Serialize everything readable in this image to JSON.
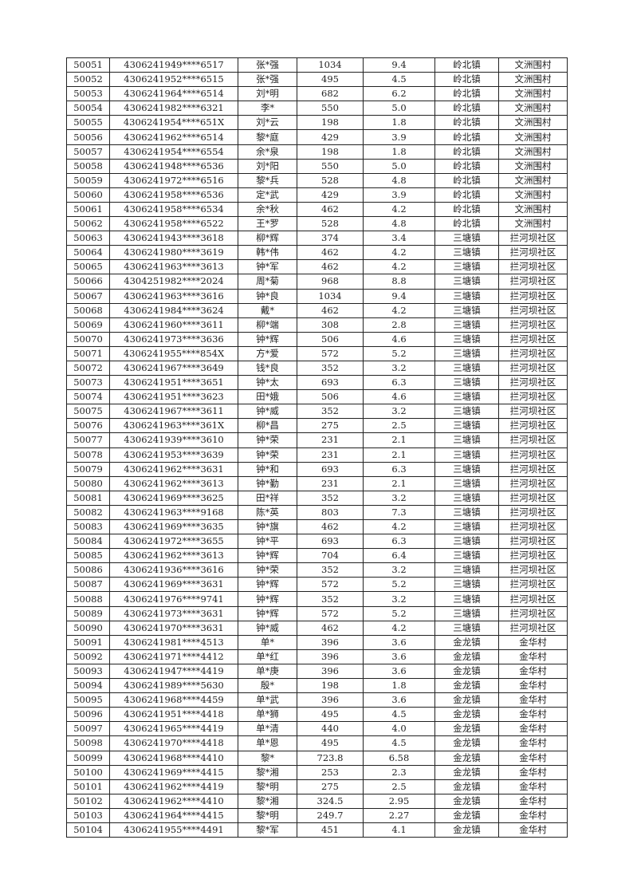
{
  "rows": [
    [
      "50051",
      "4306241949****6517",
      "张*强",
      "1034",
      "9.4",
      "岭北镇",
      "文洲围村"
    ],
    [
      "50052",
      "4306241952****6515",
      "张*强",
      "495",
      "4.5",
      "岭北镇",
      "文洲围村"
    ],
    [
      "50053",
      "4306241964****6514",
      "刘*明",
      "682",
      "6.2",
      "岭北镇",
      "文洲围村"
    ],
    [
      "50054",
      "4306241982****6321",
      "李*",
      "550",
      "5.0",
      "岭北镇",
      "文洲围村"
    ],
    [
      "50055",
      "4306241954****651X",
      "刘*云",
      "198",
      "1.8",
      "岭北镇",
      "文洲围村"
    ],
    [
      "50056",
      "4306241962****6514",
      "黎*庭",
      "429",
      "3.9",
      "岭北镇",
      "文洲围村"
    ],
    [
      "50057",
      "4306241954****6554",
      "余*泉",
      "198",
      "1.8",
      "岭北镇",
      "文洲围村"
    ],
    [
      "50058",
      "4306241948****6536",
      "刘*阳",
      "550",
      "5.0",
      "岭北镇",
      "文洲围村"
    ],
    [
      "50059",
      "4306241972****6516",
      "黎*兵",
      "528",
      "4.8",
      "岭北镇",
      "文洲围村"
    ],
    [
      "50060",
      "4306241958****6536",
      "定*武",
      "429",
      "3.9",
      "岭北镇",
      "文洲围村"
    ],
    [
      "50061",
      "4306241958****6534",
      "余*秋",
      "462",
      "4.2",
      "岭北镇",
      "文洲围村"
    ],
    [
      "50062",
      "4306241958****6522",
      "王*罗",
      "528",
      "4.8",
      "岭北镇",
      "文洲围村"
    ],
    [
      "50063",
      "4306241943****3618",
      "柳*辉",
      "374",
      "3.4",
      "三塘镇",
      "拦河坝社区"
    ],
    [
      "50064",
      "4306241980****3619",
      "韩*伟",
      "462",
      "4.2",
      "三塘镇",
      "拦河坝社区"
    ],
    [
      "50065",
      "4306241963****3613",
      "钟*军",
      "462",
      "4.2",
      "三塘镇",
      "拦河坝社区"
    ],
    [
      "50066",
      "4304251982****2024",
      "周*菊",
      "968",
      "8.8",
      "三塘镇",
      "拦河坝社区"
    ],
    [
      "50067",
      "4306241963****3616",
      "钟*良",
      "1034",
      "9.4",
      "三塘镇",
      "拦河坝社区"
    ],
    [
      "50068",
      "4306241984****3624",
      "戴*",
      "462",
      "4.2",
      "三塘镇",
      "拦河坝社区"
    ],
    [
      "50069",
      "4306241960****3611",
      "柳*端",
      "308",
      "2.8",
      "三塘镇",
      "拦河坝社区"
    ],
    [
      "50070",
      "4306241973****3636",
      "钟*辉",
      "506",
      "4.6",
      "三塘镇",
      "拦河坝社区"
    ],
    [
      "50071",
      "4306241955****854X",
      "方*爱",
      "572",
      "5.2",
      "三塘镇",
      "拦河坝社区"
    ],
    [
      "50072",
      "4306241967****3649",
      "钱*良",
      "352",
      "3.2",
      "三塘镇",
      "拦河坝社区"
    ],
    [
      "50073",
      "4306241951****3651",
      "钟*太",
      "693",
      "6.3",
      "三塘镇",
      "拦河坝社区"
    ],
    [
      "50074",
      "4306241951****3623",
      "田*娥",
      "506",
      "4.6",
      "三塘镇",
      "拦河坝社区"
    ],
    [
      "50075",
      "4306241967****3611",
      "钟*威",
      "352",
      "3.2",
      "三塘镇",
      "拦河坝社区"
    ],
    [
      "50076",
      "4306241963****361X",
      "柳*昌",
      "275",
      "2.5",
      "三塘镇",
      "拦河坝社区"
    ],
    [
      "50077",
      "4306241939****3610",
      "钟*荣",
      "231",
      "2.1",
      "三塘镇",
      "拦河坝社区"
    ],
    [
      "50078",
      "4306241953****3639",
      "钟*荣",
      "231",
      "2.1",
      "三塘镇",
      "拦河坝社区"
    ],
    [
      "50079",
      "4306241962****3631",
      "钟*和",
      "693",
      "6.3",
      "三塘镇",
      "拦河坝社区"
    ],
    [
      "50080",
      "4306241962****3613",
      "钟*勤",
      "231",
      "2.1",
      "三塘镇",
      "拦河坝社区"
    ],
    [
      "50081",
      "4306241969****3625",
      "田*祥",
      "352",
      "3.2",
      "三塘镇",
      "拦河坝社区"
    ],
    [
      "50082",
      "4306241963****9168",
      "陈*英",
      "803",
      "7.3",
      "三塘镇",
      "拦河坝社区"
    ],
    [
      "50083",
      "4306241969****3635",
      "钟*旗",
      "462",
      "4.2",
      "三塘镇",
      "拦河坝社区"
    ],
    [
      "50084",
      "4306241972****3655",
      "钟*平",
      "693",
      "6.3",
      "三塘镇",
      "拦河坝社区"
    ],
    [
      "50085",
      "4306241962****3613",
      "钟*辉",
      "704",
      "6.4",
      "三塘镇",
      "拦河坝社区"
    ],
    [
      "50086",
      "4306241936****3616",
      "钟*荣",
      "352",
      "3.2",
      "三塘镇",
      "拦河坝社区"
    ],
    [
      "50087",
      "4306241969****3631",
      "钟*辉",
      "572",
      "5.2",
      "三塘镇",
      "拦河坝社区"
    ],
    [
      "50088",
      "4306241976****9741",
      "钟*辉",
      "352",
      "3.2",
      "三塘镇",
      "拦河坝社区"
    ],
    [
      "50089",
      "4306241973****3631",
      "钟*辉",
      "572",
      "5.2",
      "三塘镇",
      "拦河坝社区"
    ],
    [
      "50090",
      "4306241970****3631",
      "钟*威",
      "462",
      "4.2",
      "三塘镇",
      "拦河坝社区"
    ],
    [
      "50091",
      "4306241981****4513",
      "单*",
      "396",
      "3.6",
      "金龙镇",
      "金华村"
    ],
    [
      "50092",
      "4306241971****4412",
      "单*红",
      "396",
      "3.6",
      "金龙镇",
      "金华村"
    ],
    [
      "50093",
      "4306241947****4419",
      "单*庚",
      "396",
      "3.6",
      "金龙镇",
      "金华村"
    ],
    [
      "50094",
      "4306241989****5630",
      "殷*",
      "198",
      "1.8",
      "金龙镇",
      "金华村"
    ],
    [
      "50095",
      "4306241968****4459",
      "单*武",
      "396",
      "3.6",
      "金龙镇",
      "金华村"
    ],
    [
      "50096",
      "4306241951****4418",
      "单*狮",
      "495",
      "4.5",
      "金龙镇",
      "金华村"
    ],
    [
      "50097",
      "4306241965****4419",
      "单*清",
      "440",
      "4.0",
      "金龙镇",
      "金华村"
    ],
    [
      "50098",
      "4306241970****4418",
      "单*恩",
      "495",
      "4.5",
      "金龙镇",
      "金华村"
    ],
    [
      "50099",
      "4306241968****4410",
      "黎*",
      "723.8",
      "6.58",
      "金龙镇",
      "金华村"
    ],
    [
      "50100",
      "4306241969****4415",
      "黎*湘",
      "253",
      "2.3",
      "金龙镇",
      "金华村"
    ],
    [
      "50101",
      "4306241962****4419",
      "黎*明",
      "275",
      "2.5",
      "金龙镇",
      "金华村"
    ],
    [
      "50102",
      "4306241962****4410",
      "黎*湘",
      "324.5",
      "2.95",
      "金龙镇",
      "金华村"
    ],
    [
      "50103",
      "4306241964****4415",
      "黎*明",
      "249.7",
      "2.27",
      "金龙镇",
      "金华村"
    ],
    [
      "50104",
      "4306241955****4491",
      "黎*军",
      "451",
      "4.1",
      "金龙镇",
      "金华村"
    ]
  ]
}
